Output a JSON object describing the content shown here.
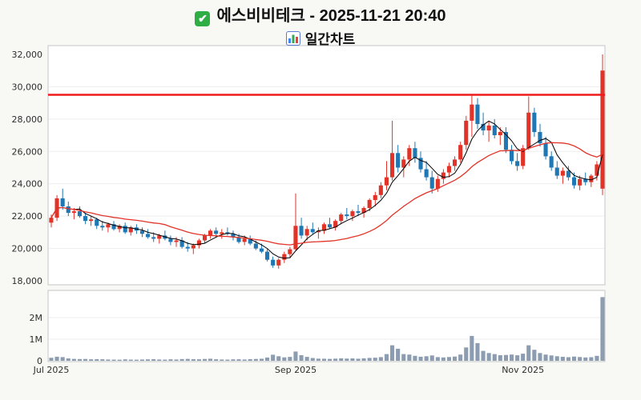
{
  "header": {
    "check_icon": "white-check-mark-icon",
    "chart_icon": "bar-chart-icon"
  },
  "chart_data": {
    "type": "candlestick",
    "title": "에스비비테크 - 2025-11-21 20:40",
    "subtitle": "일간차트",
    "colors": {
      "up": "#e23328",
      "down": "#1f77b4",
      "volume": "#8d9db1",
      "grid": "#ededed",
      "panel_border": "#c6c6c6",
      "background": "#f8f8f5"
    },
    "y_axis": {
      "min": 18000,
      "max": 32000,
      "ticks": [
        18000,
        20000,
        22000,
        24000,
        26000,
        28000,
        30000,
        32000
      ]
    },
    "volume_axis": {
      "ticks": [
        {
          "value": 0,
          "label": "0"
        },
        {
          "value": 1000000,
          "label": "1M"
        },
        {
          "value": 2000000,
          "label": "2M"
        }
      ]
    },
    "x_ticks": [
      {
        "index": 0,
        "label": "Jul 2025"
      },
      {
        "index": 43,
        "label": "Sep 2025"
      },
      {
        "index": 83,
        "label": "Nov 2025"
      }
    ],
    "hline": {
      "value": 29500,
      "color": "#ee1c1c"
    },
    "overlays": [
      {
        "name": "ma5-line",
        "type": "sma",
        "window": 5,
        "color": "#000000",
        "width": 1
      },
      {
        "name": "ma20-line",
        "type": "sma",
        "window": 20,
        "color": "#e23328",
        "width": 1.3
      }
    ],
    "candles": [
      [
        21600,
        22100,
        21300,
        21900,
        140000
      ],
      [
        21900,
        23300,
        21700,
        23100,
        190000
      ],
      [
        23100,
        23700,
        22400,
        22600,
        170000
      ],
      [
        22600,
        22900,
        22000,
        22200,
        110000
      ],
      [
        22200,
        22500,
        21800,
        22300,
        90000
      ],
      [
        22300,
        22600,
        21900,
        22000,
        80000
      ],
      [
        22000,
        22200,
        21500,
        21700,
        85000
      ],
      [
        21700,
        22000,
        21400,
        21800,
        70000
      ],
      [
        21800,
        21900,
        21200,
        21400,
        75000
      ],
      [
        21400,
        21700,
        21100,
        21300,
        70000
      ],
      [
        21300,
        21600,
        21000,
        21500,
        60000
      ],
      [
        21500,
        21700,
        21100,
        21200,
        55000
      ],
      [
        21200,
        21500,
        21000,
        21400,
        50000
      ],
      [
        21400,
        21600,
        20900,
        21000,
        65000
      ],
      [
        21000,
        21400,
        20800,
        21300,
        55000
      ],
      [
        21300,
        21500,
        20900,
        21100,
        50000
      ],
      [
        21100,
        21300,
        20700,
        20900,
        60000
      ],
      [
        20900,
        21200,
        20600,
        20700,
        65000
      ],
      [
        20700,
        21000,
        20400,
        20600,
        75000
      ],
      [
        20600,
        20900,
        20300,
        20800,
        60000
      ],
      [
        20800,
        21100,
        20500,
        20600,
        55000
      ],
      [
        20600,
        20800,
        20200,
        20400,
        70000
      ],
      [
        20400,
        20700,
        20100,
        20500,
        60000
      ],
      [
        20500,
        20700,
        20000,
        20100,
        80000
      ],
      [
        20100,
        20400,
        19800,
        20000,
        90000
      ],
      [
        20000,
        20300,
        19650,
        20200,
        75000
      ],
      [
        20200,
        20600,
        20000,
        20500,
        70000
      ],
      [
        20500,
        20900,
        20300,
        20800,
        85000
      ],
      [
        20800,
        21200,
        20600,
        21100,
        95000
      ],
      [
        21100,
        21300,
        20700,
        20900,
        70000
      ],
      [
        20900,
        21200,
        20600,
        21000,
        60000
      ],
      [
        21000,
        21300,
        20800,
        20900,
        55000
      ],
      [
        20900,
        21100,
        20500,
        20700,
        65000
      ],
      [
        20700,
        20900,
        20300,
        20400,
        70000
      ],
      [
        20400,
        20800,
        20200,
        20600,
        60000
      ],
      [
        20600,
        20800,
        20200,
        20300,
        75000
      ],
      [
        20300,
        20500,
        19900,
        20000,
        85000
      ],
      [
        20000,
        20300,
        19700,
        19800,
        95000
      ],
      [
        19800,
        19950,
        19200,
        19300,
        150000
      ],
      [
        19300,
        19500,
        18800,
        18950,
        280000
      ],
      [
        18950,
        19400,
        18750,
        19300,
        210000
      ],
      [
        19300,
        19800,
        19100,
        19650,
        160000
      ],
      [
        19650,
        20100,
        19400,
        19950,
        180000
      ],
      [
        19950,
        23400,
        19900,
        21400,
        430000
      ],
      [
        21400,
        21900,
        20600,
        20800,
        260000
      ],
      [
        20800,
        21400,
        20500,
        21200,
        180000
      ],
      [
        21200,
        21600,
        20900,
        21000,
        130000
      ],
      [
        21000,
        21300,
        20600,
        21100,
        100000
      ],
      [
        21100,
        21600,
        20900,
        21500,
        95000
      ],
      [
        21500,
        21900,
        21200,
        21300,
        90000
      ],
      [
        21300,
        21800,
        21100,
        21700,
        100000
      ],
      [
        21700,
        22200,
        21500,
        22100,
        115000
      ],
      [
        22100,
        22500,
        21800,
        22000,
        105000
      ],
      [
        22000,
        22400,
        21700,
        22300,
        110000
      ],
      [
        22300,
        22700,
        22000,
        22200,
        95000
      ],
      [
        22200,
        22600,
        21900,
        22500,
        115000
      ],
      [
        22500,
        23100,
        22300,
        23000,
        135000
      ],
      [
        23000,
        23500,
        22600,
        23300,
        145000
      ],
      [
        23300,
        24100,
        23100,
        23900,
        170000
      ],
      [
        23900,
        25400,
        23600,
        24400,
        310000
      ],
      [
        24400,
        27900,
        24200,
        25900,
        720000
      ],
      [
        25900,
        26400,
        24700,
        25000,
        560000
      ],
      [
        25000,
        25700,
        24400,
        25500,
        310000
      ],
      [
        25500,
        26400,
        25100,
        26200,
        290000
      ],
      [
        26200,
        26600,
        25300,
        25600,
        230000
      ],
      [
        25600,
        26000,
        24700,
        24900,
        190000
      ],
      [
        24900,
        25400,
        24200,
        24400,
        210000
      ],
      [
        24400,
        24800,
        23400,
        23700,
        250000
      ],
      [
        23700,
        24500,
        23500,
        24300,
        170000
      ],
      [
        24300,
        24900,
        24000,
        24700,
        155000
      ],
      [
        24700,
        25300,
        24400,
        25100,
        175000
      ],
      [
        25100,
        25700,
        24800,
        25500,
        195000
      ],
      [
        25500,
        26600,
        25300,
        26400,
        290000
      ],
      [
        26400,
        28200,
        26100,
        27900,
        620000
      ],
      [
        27900,
        29500,
        26900,
        28900,
        1150000
      ],
      [
        28900,
        29300,
        27400,
        27700,
        820000
      ],
      [
        27700,
        28400,
        27000,
        27300,
        460000
      ],
      [
        27300,
        27900,
        26600,
        27600,
        360000
      ],
      [
        27600,
        28000,
        26800,
        27000,
        310000
      ],
      [
        27000,
        27500,
        26400,
        27200,
        260000
      ],
      [
        27200,
        27500,
        25900,
        26100,
        270000
      ],
      [
        26100,
        26400,
        25200,
        25400,
        290000
      ],
      [
        25400,
        25900,
        24800,
        25100,
        255000
      ],
      [
        25100,
        26400,
        24900,
        26200,
        330000
      ],
      [
        26200,
        29400,
        26100,
        28400,
        720000
      ],
      [
        28400,
        28700,
        26900,
        27200,
        510000
      ],
      [
        27200,
        27700,
        26300,
        26500,
        360000
      ],
      [
        26500,
        26900,
        25500,
        25700,
        290000
      ],
      [
        25700,
        26000,
        24800,
        25000,
        250000
      ],
      [
        25000,
        25400,
        24300,
        24500,
        210000
      ],
      [
        24500,
        25000,
        24000,
        24800,
        185000
      ],
      [
        24800,
        25100,
        24200,
        24400,
        165000
      ],
      [
        24400,
        24700,
        23700,
        23900,
        195000
      ],
      [
        23900,
        24500,
        23600,
        24300,
        175000
      ],
      [
        24300,
        24700,
        23900,
        24100,
        155000
      ],
      [
        24100,
        24600,
        23800,
        24500,
        165000
      ],
      [
        24500,
        25400,
        24200,
        25200,
        230000
      ],
      [
        23700,
        32000,
        23300,
        31000,
        2950000
      ]
    ]
  }
}
